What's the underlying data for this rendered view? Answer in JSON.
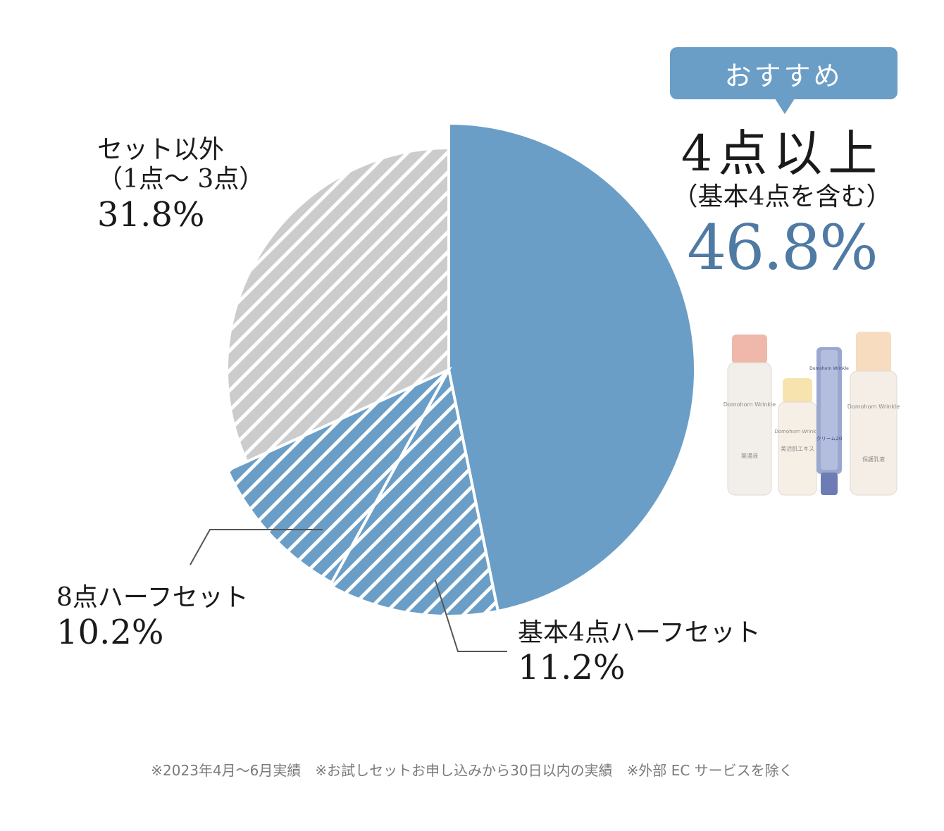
{
  "chart_data": {
    "type": "pie",
    "slices": [
      {
        "label": "4点以上（基本4点を含む）",
        "value": 46.8,
        "value_text": "46.8%",
        "color": "#6a9ec7",
        "pattern": "solid"
      },
      {
        "label": "基本4点ハーフセット",
        "value": 11.2,
        "value_text": "11.2%",
        "color": "#6a9ec7",
        "pattern": "striped"
      },
      {
        "label": "8点ハーフセット",
        "value": 10.2,
        "value_text": "10.2%",
        "color": "#6a9ec7",
        "pattern": "striped"
      },
      {
        "label": "セット以外（1点〜 3点）",
        "value": 31.8,
        "value_text": "31.8%",
        "color": "#cccccc",
        "pattern": "striped"
      }
    ]
  },
  "labels": {
    "other": {
      "line1": "セット以外",
      "line2": "（1点〜 3点）",
      "pct": "31.8%"
    },
    "eight_half": {
      "name": "8点ハーフセット",
      "pct": "10.2%"
    },
    "basic4_half": {
      "name": "基本4点ハーフセット",
      "pct": "11.2%"
    }
  },
  "recommend": {
    "badge": "おすすめ",
    "title": "4点以上",
    "subtitle": "（基本4点を含む）",
    "pct": "46.8%"
  },
  "products": {
    "brand": "Domohorn Wrinkle",
    "items": [
      "薬湯液",
      "美活肌エキス",
      "クリーム20",
      "保護乳液"
    ]
  },
  "footnote": "※2023年4月〜6月実績　※お試しセットお申し込みから30日以内の実績　※外部 EC サービスを除く",
  "colors": {
    "accent": "#6a9ec7",
    "accent_text": "#4f7aa3",
    "gray": "#cccccc"
  }
}
